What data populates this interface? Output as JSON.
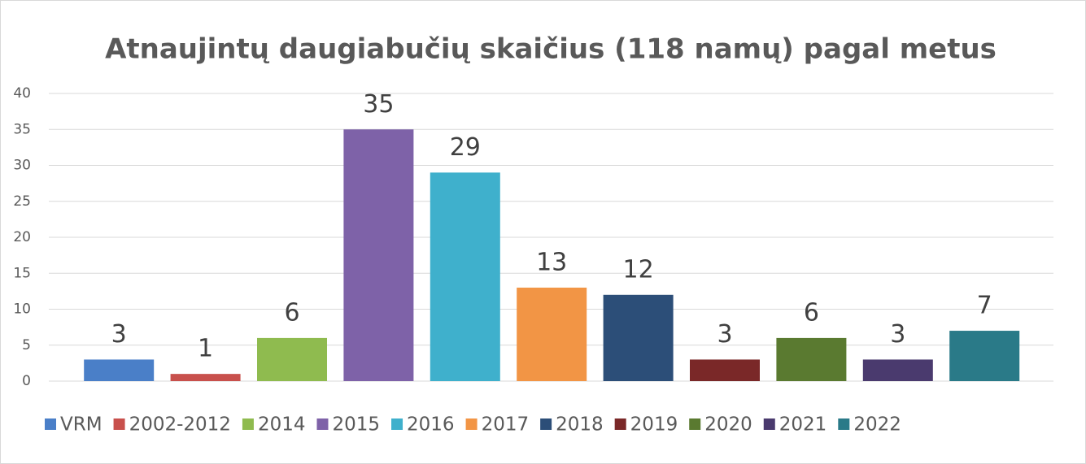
{
  "chart_data": {
    "type": "bar",
    "title": "Atnaujintų daugiabučių skaičius (118 namų) pagal metus",
    "categories": [
      "VRM",
      "2002-2012",
      "2014",
      "2015",
      "2016",
      "2017",
      "2018",
      "2019",
      "2020",
      "2021",
      "2022"
    ],
    "values": [
      3,
      1,
      6,
      35,
      29,
      13,
      12,
      3,
      6,
      3,
      7
    ],
    "colors": [
      "#4a7fc8",
      "#c8504c",
      "#8fbb4f",
      "#7e62a8",
      "#3fb0cc",
      "#f29545",
      "#2c4e78",
      "#7a2828",
      "#5a7a30",
      "#4a3a6e",
      "#2a7a88"
    ],
    "ylim": [
      0,
      40
    ],
    "yticks": [
      0,
      5,
      10,
      15,
      20,
      25,
      30,
      35,
      40
    ],
    "grid": true,
    "legend": "bottom"
  }
}
